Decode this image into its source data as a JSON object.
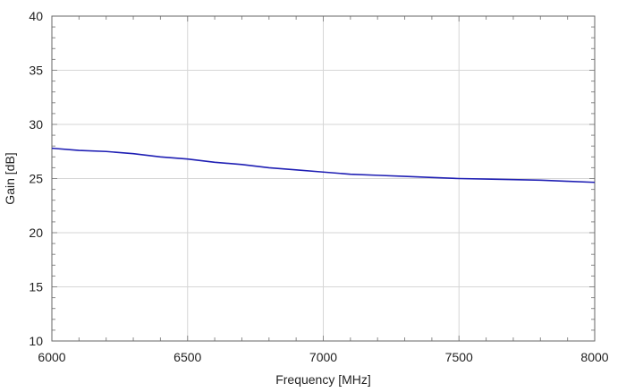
{
  "colors": {
    "background": "#ffffff",
    "series": "#1f1fb4",
    "grid": "#d6d6d6",
    "axis": "#666666",
    "minor_tick": "#8a8a8a"
  },
  "chart_data": {
    "type": "line",
    "xlabel": "Frequency [MHz]",
    "ylabel": "Gain [dB]",
    "xlim": [
      6000,
      8000
    ],
    "ylim": [
      10,
      40
    ],
    "x_ticks": [
      6000,
      6500,
      7000,
      7500,
      8000
    ],
    "y_ticks": [
      10,
      15,
      20,
      25,
      30,
      35,
      40
    ],
    "x_tick_labels": [
      "6000",
      "6500",
      "7000",
      "7500",
      "8000"
    ],
    "y_tick_labels": [
      "10",
      "15",
      "20",
      "25",
      "30",
      "35",
      "40"
    ],
    "grid": true,
    "series": [
      {
        "x": [
          6000,
          6100,
          6200,
          6300,
          6400,
          6500,
          6600,
          6700,
          6800,
          6900,
          7000,
          7100,
          7200,
          7300,
          7400,
          7500,
          7600,
          7700,
          7800,
          7900,
          8000
        ],
        "values": [
          27.8,
          27.6,
          27.5,
          27.3,
          27.0,
          26.8,
          26.5,
          26.3,
          26.0,
          25.8,
          25.6,
          25.4,
          25.3,
          25.2,
          25.1,
          25.0,
          24.95,
          24.9,
          24.85,
          24.75,
          24.65
        ]
      }
    ]
  }
}
